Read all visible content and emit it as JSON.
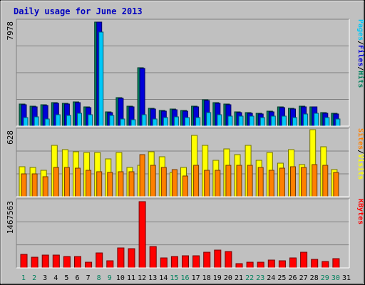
{
  "chart_data": {
    "type": "bar",
    "title": "Daily usage for June 2013",
    "categories": [
      "1",
      "2",
      "3",
      "4",
      "5",
      "6",
      "7",
      "8",
      "9",
      "10",
      "11",
      "12",
      "13",
      "14",
      "15",
      "16",
      "17",
      "18",
      "19",
      "20",
      "21",
      "22",
      "23",
      "24",
      "25",
      "26",
      "27",
      "28",
      "29",
      "30",
      "31"
    ],
    "weekend_days": [
      "1",
      "2",
      "8",
      "9",
      "15",
      "16",
      "22",
      "23",
      "29",
      "30"
    ],
    "colors": {
      "hits": "#00805C",
      "files": "#0000D8",
      "pages": "#00C8F8",
      "visits": "#FFFF00",
      "sites": "#FF8000",
      "kbytes": "#FF0000",
      "title": "#0000C0",
      "weekend_label": "#00805C",
      "weekday_label": "#000000"
    },
    "panels": [
      {
        "name": "hits",
        "ymax_label": "7978",
        "ymax": 7978,
        "right_label": [
          {
            "text": "Pages",
            "color": "#00C8F8"
          },
          {
            "text": "/",
            "color": "#000000"
          },
          {
            "text": "Files",
            "color": "#0000D8"
          },
          {
            "text": "/",
            "color": "#000000"
          },
          {
            "text": "Hits",
            "color": "#00805C"
          }
        ],
        "series": [
          {
            "name": "Hits",
            "color": "#00805C",
            "values": [
              1700,
              1550,
              1650,
              1800,
              1750,
              1850,
              1450,
              7978,
              1100,
              2200,
              1550,
              4500,
              1350,
              1200,
              1300,
              1200,
              1550,
              2000,
              1800,
              1700,
              1100,
              1050,
              1000,
              1150,
              1450,
              1350,
              1550,
              1500,
              1050,
              1000,
              0
            ]
          },
          {
            "name": "Files",
            "color": "#0000D8",
            "values": [
              1650,
              1500,
              1600,
              1750,
              1700,
              1800,
              1400,
              7978,
              1050,
              2150,
              1500,
              4400,
              1300,
              1150,
              1250,
              1150,
              1500,
              1950,
              1750,
              1650,
              1050,
              1000,
              950,
              1100,
              1400,
              1300,
              1500,
              1450,
              1000,
              950,
              0
            ]
          },
          {
            "name": "Pages",
            "color": "#00C8F8",
            "values": [
              650,
              700,
              550,
              850,
              800,
              1000,
              900,
              7200,
              800,
              550,
              500,
              850,
              550,
              650,
              700,
              650,
              650,
              1050,
              850,
              750,
              750,
              750,
              650,
              750,
              750,
              650,
              950,
              1000,
              650,
              550,
              0
            ]
          }
        ]
      },
      {
        "name": "visits",
        "ymax_label": "628",
        "ymax": 628,
        "right_label": [
          {
            "text": "Sites",
            "color": "#FF8000"
          },
          {
            "text": "/",
            "color": "#000000"
          },
          {
            "text": "Visits",
            "color": "#FFFF00"
          }
        ],
        "series": [
          {
            "name": "Visits",
            "color": "#FFFF00",
            "values": [
              290,
              280,
              250,
              490,
              450,
              430,
              420,
              420,
              360,
              420,
              280,
              300,
              430,
              380,
              230,
              280,
              590,
              490,
              350,
              460,
              400,
              490,
              350,
              420,
              320,
              450,
              310,
              640,
              480,
              260,
              0
            ]
          },
          {
            "name": "Sites",
            "color": "#FF8000",
            "values": [
              220,
              220,
              190,
              280,
              280,
              270,
              250,
              240,
              230,
              240,
              240,
              400,
              300,
              280,
              260,
              200,
              300,
              250,
              250,
              300,
              300,
              300,
              280,
              250,
              270,
              290,
              280,
              310,
              300,
              230,
              0
            ]
          }
        ]
      },
      {
        "name": "kbytes",
        "ymax_label": "1467563",
        "ymax": 1467563,
        "right_label": [
          {
            "text": "KBytes",
            "color": "#FF0000"
          }
        ],
        "series": [
          {
            "name": "KBytes",
            "color": "#FF0000",
            "values": [
              300000,
              240000,
              280000,
              280000,
              250000,
              250000,
              130000,
              330000,
              150000,
              440000,
              420000,
              1467563,
              480000,
              220000,
              250000,
              270000,
              270000,
              340000,
              400000,
              370000,
              100000,
              120000,
              120000,
              170000,
              150000,
              220000,
              350000,
              190000,
              140000,
              210000,
              0
            ]
          }
        ]
      }
    ]
  }
}
